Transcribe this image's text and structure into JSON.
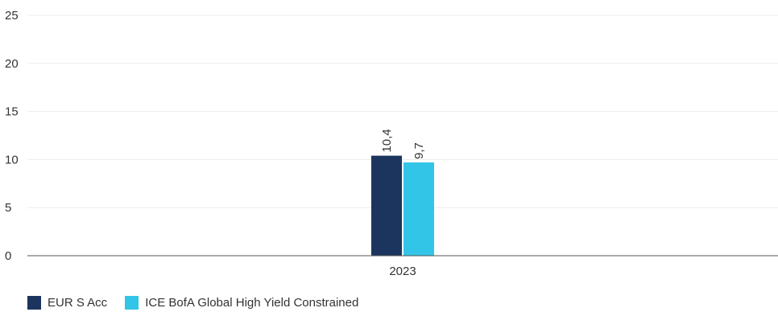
{
  "chart_data": {
    "type": "bar",
    "categories": [
      "2023"
    ],
    "series": [
      {
        "name": "EUR S Acc",
        "values": [
          10.4
        ],
        "labels": [
          "10,4"
        ],
        "color": "#1c355e"
      },
      {
        "name": "ICE BofA Global High Yield Constrained",
        "values": [
          9.7
        ],
        "labels": [
          "9,7"
        ],
        "color": "#33c5e8"
      }
    ],
    "title": "",
    "xlabel": "",
    "ylabel": "",
    "ylim": [
      0,
      25
    ],
    "yticks": [
      0,
      5,
      10,
      15,
      20,
      25
    ],
    "grid": true,
    "legend_position": "bottom-left"
  }
}
